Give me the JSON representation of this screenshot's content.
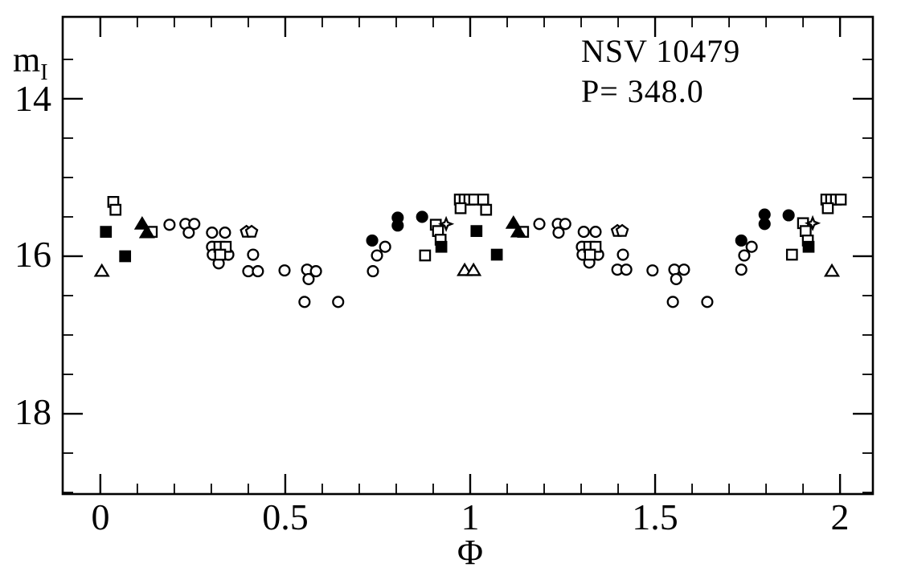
{
  "figure": {
    "title": "NSV 10479",
    "period_label": "P= 348.0"
  },
  "chart_data": {
    "type": "scatter",
    "title": "NSV 10479",
    "annotation": "P= 348.0",
    "xlabel": "Φ",
    "ylabel": "m",
    "ylabel_subscript": "I",
    "x_axis": {
      "min": -0.104,
      "max": 2.091,
      "major_ticks": [
        0,
        0.5,
        1,
        1.5,
        2
      ],
      "tick_labels": [
        "0",
        "0.5",
        "1",
        "1.5",
        "2"
      ],
      "minor_step": 0.1,
      "minor_start": 0,
      "minor_end": 2.0
    },
    "y_axis": {
      "min": 12.95,
      "max": 19.03,
      "inverted": true,
      "major_ticks": [
        14,
        16,
        18
      ],
      "tick_labels": [
        "14",
        "16",
        "18"
      ],
      "minor_step": 0.5,
      "minor_start": 13.5,
      "minor_end": 19.0
    },
    "marker_color": "#000000",
    "open_fill": "#ffffff",
    "series": [
      {
        "name": "open-circles",
        "marker": "circle",
        "fill": "open",
        "points": [
          [
            0.187,
            15.6
          ],
          [
            0.23,
            15.59
          ],
          [
            0.254,
            15.59
          ],
          [
            0.239,
            15.7
          ],
          [
            0.302,
            15.7
          ],
          [
            0.337,
            15.7
          ],
          [
            0.302,
            15.88
          ],
          [
            0.304,
            15.98
          ],
          [
            0.346,
            15.98
          ],
          [
            0.32,
            16.09
          ],
          [
            0.413,
            15.98
          ],
          [
            0.4,
            16.19
          ],
          [
            0.426,
            16.19
          ],
          [
            0.498,
            16.18
          ],
          [
            0.559,
            16.17
          ],
          [
            0.583,
            16.19
          ],
          [
            0.563,
            16.29
          ],
          [
            0.552,
            16.58
          ],
          [
            0.643,
            16.58
          ],
          [
            0.77,
            15.88
          ],
          [
            0.748,
            15.99
          ],
          [
            0.737,
            16.19
          ],
          [
            1.187,
            15.59
          ],
          [
            1.237,
            15.59
          ],
          [
            1.257,
            15.59
          ],
          [
            1.239,
            15.7
          ],
          [
            1.307,
            15.69
          ],
          [
            1.339,
            15.69
          ],
          [
            1.302,
            15.88
          ],
          [
            1.304,
            15.98
          ],
          [
            1.346,
            15.98
          ],
          [
            1.322,
            16.08
          ],
          [
            1.413,
            15.98
          ],
          [
            1.398,
            16.17
          ],
          [
            1.422,
            16.17
          ],
          [
            1.493,
            16.18
          ],
          [
            1.552,
            16.17
          ],
          [
            1.578,
            16.17
          ],
          [
            1.557,
            16.29
          ],
          [
            1.548,
            16.58
          ],
          [
            1.641,
            16.58
          ],
          [
            1.761,
            15.88
          ],
          [
            1.741,
            15.99
          ],
          [
            1.733,
            16.17
          ]
        ]
      },
      {
        "name": "filled-circles",
        "marker": "circle",
        "fill": "filled",
        "points": [
          [
            0.735,
            15.8
          ],
          [
            0.804,
            15.51
          ],
          [
            0.804,
            15.61
          ],
          [
            0.87,
            15.5
          ],
          [
            1.733,
            15.8
          ],
          [
            1.796,
            15.47
          ],
          [
            1.796,
            15.59
          ],
          [
            1.861,
            15.48
          ]
        ]
      },
      {
        "name": "open-squares",
        "marker": "square",
        "fill": "open",
        "points": [
          [
            0.035,
            15.31
          ],
          [
            0.041,
            15.41
          ],
          [
            0.139,
            15.69
          ],
          [
            0.322,
            15.88
          ],
          [
            0.339,
            15.88
          ],
          [
            0.324,
            15.98
          ],
          [
            0.878,
            15.99
          ],
          [
            0.907,
            15.6
          ],
          [
            0.913,
            15.68
          ],
          [
            0.92,
            15.79
          ],
          [
            0.972,
            15.28
          ],
          [
            0.985,
            15.28
          ],
          [
            0.998,
            15.28
          ],
          [
            1.011,
            15.28
          ],
          [
            1.035,
            15.28
          ],
          [
            0.974,
            15.39
          ],
          [
            1.043,
            15.41
          ],
          [
            1.143,
            15.69
          ],
          [
            1.322,
            15.88
          ],
          [
            1.339,
            15.88
          ],
          [
            1.324,
            15.98
          ],
          [
            1.87,
            15.98
          ],
          [
            1.9,
            15.58
          ],
          [
            1.907,
            15.68
          ],
          [
            1.913,
            15.8
          ],
          [
            1.963,
            15.28
          ],
          [
            1.976,
            15.28
          ],
          [
            1.989,
            15.28
          ],
          [
            2.002,
            15.28
          ],
          [
            1.967,
            15.39
          ]
        ]
      },
      {
        "name": "filled-squares",
        "marker": "square",
        "fill": "filled",
        "points": [
          [
            0.015,
            15.69
          ],
          [
            0.067,
            16.0
          ],
          [
            0.922,
            15.88
          ],
          [
            1.017,
            15.68
          ],
          [
            1.072,
            15.98
          ],
          [
            1.915,
            15.88
          ]
        ]
      },
      {
        "name": "open-triangles",
        "marker": "triangle",
        "fill": "open",
        "points": [
          [
            0.004,
            16.19
          ],
          [
            0.985,
            16.18
          ],
          [
            1.009,
            16.18
          ],
          [
            1.978,
            16.19
          ]
        ]
      },
      {
        "name": "filled-triangles",
        "marker": "triangle",
        "fill": "filled",
        "points": [
          [
            0.113,
            15.59
          ],
          [
            0.126,
            15.7
          ],
          [
            1.117,
            15.58
          ],
          [
            1.13,
            15.69
          ]
        ]
      },
      {
        "name": "open-pentagons",
        "marker": "pentagon",
        "fill": "open",
        "points": [
          [
            0.395,
            15.69
          ],
          [
            0.409,
            15.69
          ],
          [
            1.398,
            15.68
          ],
          [
            1.411,
            15.68
          ]
        ]
      },
      {
        "name": "open-four-point-stars",
        "marker": "star4",
        "fill": "open",
        "points": [
          [
            0.935,
            15.59
          ],
          [
            1.926,
            15.58
          ]
        ]
      }
    ]
  }
}
